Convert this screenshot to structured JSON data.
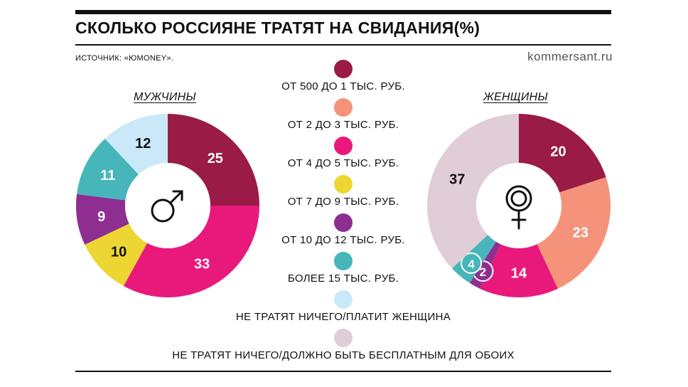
{
  "title": "СКОЛЬКО РОССИЯНЕ ТРАТЯТ НА СВИДАНИЯ(%)",
  "source": "ИСТОЧНИК: «ЮMONEY».",
  "site": "kommersant.ru",
  "colors": {
    "from_500_to_1k": "#9a1b45",
    "from_2k_to_3k": "#f4937a",
    "from_4k_to_5k": "#e8197a",
    "from_7k_to_9k": "#eed632",
    "from_10k_to_12k": "#8e2e90",
    "over_15k": "#46b6bb",
    "nothing_woman_pays": "#c9e9f8",
    "nothing_free_both": "#e0cdd7"
  },
  "legend": [
    {
      "label": "ОТ 500 ДО 1 ТЫС. РУБ.",
      "color": "#9a1b45"
    },
    {
      "label": "ОТ 2 ДО 3 ТЫС. РУБ.",
      "color": "#f4937a"
    },
    {
      "label": "ОТ 4 ДО 5 ТЫС. РУБ.",
      "color": "#e8197a"
    },
    {
      "label": "ОТ 7 ДО 9 ТЫС. РУБ.",
      "color": "#eed632"
    },
    {
      "label": "ОТ 10 ДО 12 ТЫС. РУБ.",
      "color": "#8e2e90"
    },
    {
      "label": "БОЛЕЕ 15 ТЫС. РУБ.",
      "color": "#46b6bb"
    },
    {
      "label": "НЕ ТРАТЯТ НИЧЕГО/ПЛАТИТ ЖЕНЩИНА",
      "color": "#c9e9f8"
    },
    {
      "label": "НЕ ТРАТЯТ НИЧЕГО/ДОЛЖНО БЫТЬ БЕСПЛАТНЫМ ДЛЯ ОБОИХ",
      "color": "#e0cdd7"
    }
  ],
  "chart_data": [
    {
      "type": "pie",
      "title": "МУЖЧИНЫ",
      "icon": "male-symbol-icon",
      "slices": [
        {
          "category": "ОТ 500 ДО 1 ТЫС. РУБ.",
          "value": 25,
          "color": "#9a1b45",
          "label_color": "#ffffff"
        },
        {
          "category": "ОТ 4 ДО 5 ТЫС. РУБ.",
          "value": 33,
          "color": "#e8197a",
          "label_color": "#ffffff"
        },
        {
          "category": "ОТ 7 ДО 9 ТЫС. РУБ.",
          "value": 10,
          "color": "#eed632",
          "label_color": "#111111"
        },
        {
          "category": "ОТ 10 ДО 12 ТЫС. РУБ.",
          "value": 9,
          "color": "#8e2e90",
          "label_color": "#ffffff"
        },
        {
          "category": "БОЛЕЕ 15 ТЫС. РУБ.",
          "value": 11,
          "color": "#46b6bb",
          "label_color": "#ffffff"
        },
        {
          "category": "НЕ ТРАТЯТ НИЧЕГО/ПЛАТИТ ЖЕНЩИНА",
          "value": 12,
          "color": "#c9e9f8",
          "label_color": "#111111"
        }
      ]
    },
    {
      "type": "pie",
      "title": "ЖЕНЩИНЫ",
      "icon": "female-symbol-icon",
      "slices": [
        {
          "category": "ОТ 500 ДО 1 ТЫС. РУБ.",
          "value": 20,
          "color": "#9a1b45",
          "label_color": "#ffffff"
        },
        {
          "category": "ОТ 2 ДО 3 ТЫС. РУБ.",
          "value": 23,
          "color": "#f4937a",
          "label_color": "#ffffff"
        },
        {
          "category": "ОТ 4 ДО 5 ТЫС. РУБ.",
          "value": 14,
          "color": "#e8197a",
          "label_color": "#ffffff"
        },
        {
          "category": "ОТ 10 ДО 12 ТЫС. РУБ.",
          "value": 2,
          "color": "#8e2e90",
          "label_color": "#ffffff"
        },
        {
          "category": "БОЛЕЕ 15 ТЫС. РУБ.",
          "value": 4,
          "color": "#46b6bb",
          "label_color": "#ffffff"
        },
        {
          "category": "НЕ ТРАТЯТ НИЧЕГО/ДОЛЖНО БЫТЬ БЕСПЛАТНЫМ ДЛЯ ОБОИХ",
          "value": 37,
          "color": "#e0cdd7",
          "label_color": "#111111"
        }
      ]
    }
  ]
}
